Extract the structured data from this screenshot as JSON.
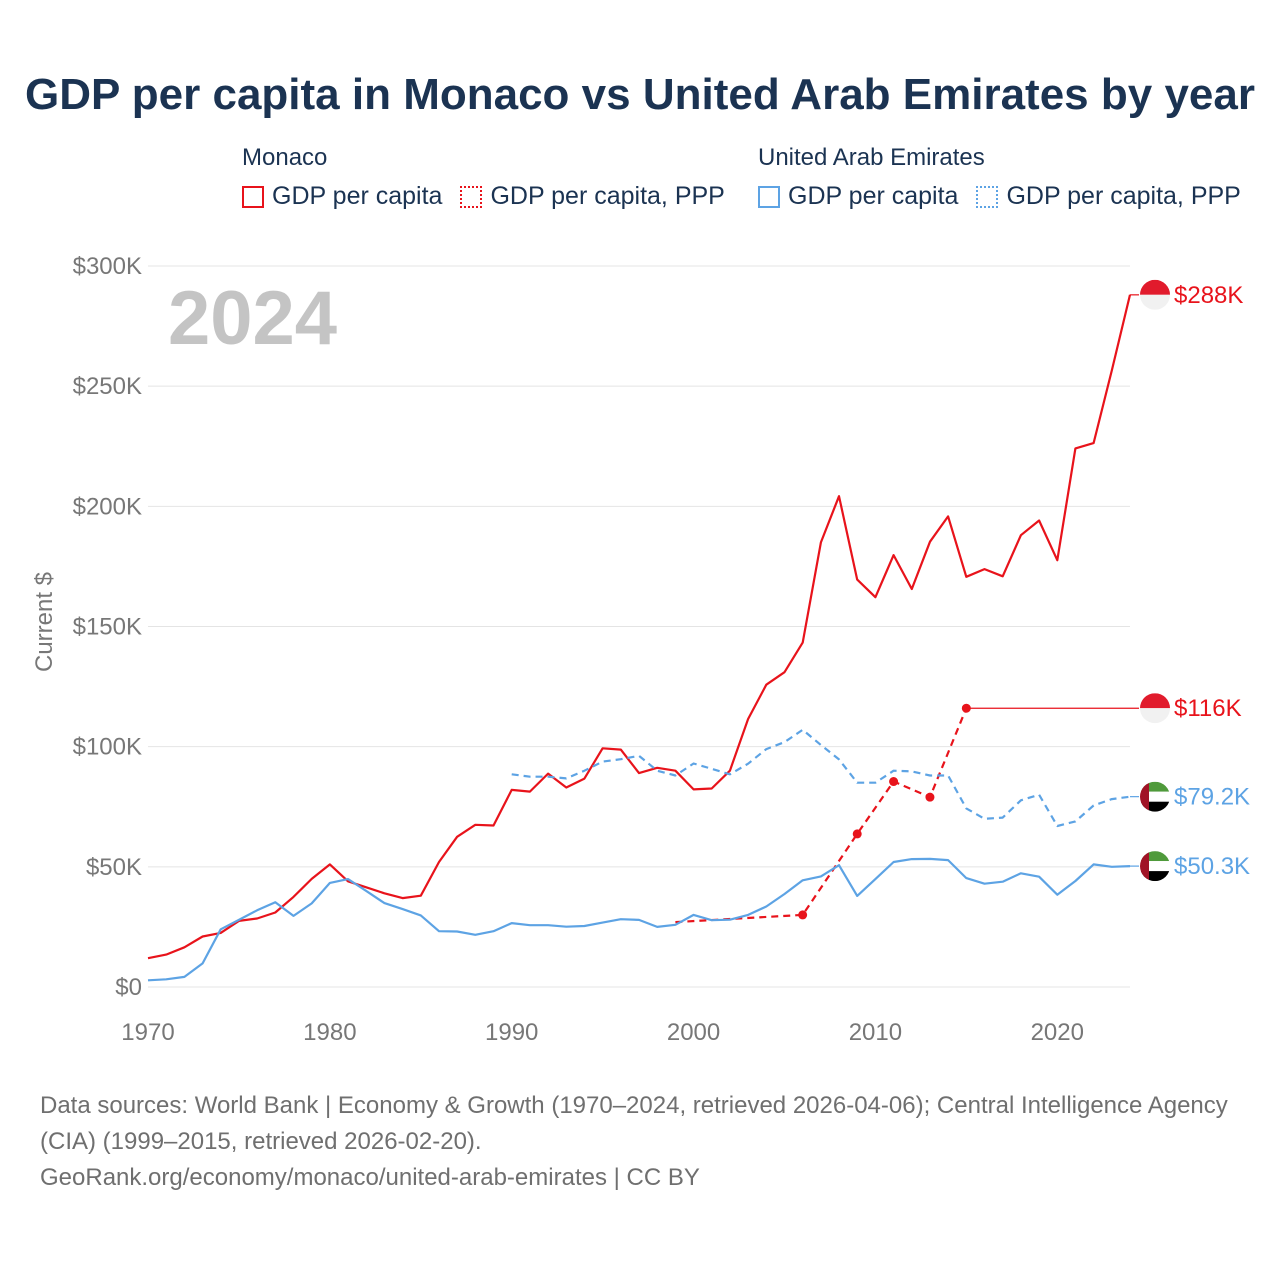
{
  "title": "GDP per capita in Monaco vs United Arab Emirates by year",
  "year_badge": "2024",
  "legend": [
    {
      "country": "Monaco",
      "color": "#e8131b",
      "items": [
        {
          "label": "GDP per capita",
          "style": "solid"
        },
        {
          "label": "GDP per capita, PPP",
          "style": "dotted"
        }
      ]
    },
    {
      "country": "United Arab Emirates",
      "color": "#5da3e4",
      "items": [
        {
          "label": "GDP per capita",
          "style": "solid"
        },
        {
          "label": "GDP per capita, PPP",
          "style": "dotted"
        }
      ]
    }
  ],
  "footer": {
    "sources": "Data sources: World Bank | Economy & Growth (1970–2024, retrieved 2026-04-06); Central Intelligence Agency (CIA) (1999–2015, retrieved 2026-02-20).",
    "credit": "GeoRank.org/economy/monaco/united-arab-emirates | CC BY"
  },
  "chart_data": {
    "type": "line",
    "title": "GDP per capita in Monaco vs United Arab Emirates by year",
    "ylabel": "Current $",
    "xlabel": "",
    "xlim": [
      1970,
      2024
    ],
    "ylim": [
      0,
      300000
    ],
    "x_ticks": [
      1970,
      1980,
      1990,
      2000,
      2010,
      2020
    ],
    "y_ticks": [
      {
        "value": 0,
        "label": "$0"
      },
      {
        "value": 50000,
        "label": "$50K"
      },
      {
        "value": 100000,
        "label": "$100K"
      },
      {
        "value": 150000,
        "label": "$150K"
      },
      {
        "value": 200000,
        "label": "$200K"
      },
      {
        "value": 250000,
        "label": "$250K"
      },
      {
        "value": 300000,
        "label": "$300K"
      }
    ],
    "grid": true,
    "series": [
      {
        "name": "Monaco GDP per capita",
        "country": "Monaco",
        "color": "#e8131b",
        "style": "solid",
        "end_label": "$288K",
        "flag": "monaco",
        "x": [
          1970,
          1971,
          1972,
          1973,
          1974,
          1975,
          1976,
          1977,
          1978,
          1979,
          1980,
          1981,
          1982,
          1983,
          1984,
          1985,
          1986,
          1987,
          1988,
          1989,
          1990,
          1991,
          1992,
          1993,
          1994,
          1995,
          1996,
          1997,
          1998,
          1999,
          2000,
          2001,
          2002,
          2003,
          2004,
          2005,
          2006,
          2007,
          2008,
          2009,
          2010,
          2011,
          2012,
          2013,
          2014,
          2015,
          2016,
          2017,
          2018,
          2019,
          2020,
          2021,
          2022,
          2023,
          2024
        ],
        "values": [
          12000,
          13500,
          16500,
          21000,
          22500,
          27500,
          28500,
          31000,
          37500,
          45000,
          51000,
          44000,
          41500,
          39000,
          37000,
          38000,
          52000,
          62500,
          67500,
          67200,
          82000,
          81300,
          88800,
          83000,
          86700,
          99300,
          98800,
          89000,
          91200,
          90000,
          82200,
          82600,
          90000,
          111500,
          125800,
          131000,
          143300,
          185000,
          204200,
          169500,
          162200,
          179700,
          165600,
          185300,
          195800,
          170700,
          173900,
          170900,
          188000,
          194100,
          177600,
          224100,
          226300,
          256500,
          288000
        ]
      },
      {
        "name": "Monaco GDP per capita, PPP",
        "country": "Monaco",
        "color": "#e8131b",
        "style": "dashed",
        "end_label": "$116K",
        "flag": "monaco",
        "x": [
          1999,
          2006,
          2009,
          2011,
          2013,
          2015
        ],
        "values": [
          27000,
          30000,
          63700,
          85500,
          79000,
          116000
        ]
      },
      {
        "name": "United Arab Emirates GDP per capita",
        "country": "United Arab Emirates",
        "color": "#5da3e4",
        "style": "solid",
        "end_label": "$50.3K",
        "flag": "uae",
        "x": [
          1970,
          1971,
          1972,
          1973,
          1974,
          1975,
          1976,
          1977,
          1978,
          1979,
          1980,
          1981,
          1982,
          1983,
          1984,
          1985,
          1986,
          1987,
          1988,
          1989,
          1990,
          1991,
          1992,
          1993,
          1994,
          1995,
          1996,
          1997,
          1998,
          1999,
          2000,
          2001,
          2002,
          2003,
          2004,
          2005,
          2006,
          2007,
          2008,
          2009,
          2010,
          2011,
          2012,
          2013,
          2014,
          2015,
          2016,
          2017,
          2018,
          2019,
          2020,
          2021,
          2022,
          2023,
          2024
        ],
        "values": [
          2800,
          3200,
          4200,
          9800,
          24000,
          27900,
          31900,
          35300,
          29600,
          34800,
          43300,
          44900,
          40000,
          34900,
          32400,
          29800,
          23200,
          23100,
          21700,
          23200,
          26600,
          25700,
          25700,
          25100,
          25400,
          26800,
          28200,
          27900,
          25000,
          25900,
          30000,
          27800,
          28000,
          30000,
          33500,
          38700,
          44400,
          46000,
          50700,
          37900,
          44900,
          52000,
          53200,
          53300,
          52800,
          45300,
          43000,
          43800,
          47300,
          45900,
          38400,
          44100,
          51000,
          50000,
          50300
        ]
      },
      {
        "name": "United Arab Emirates GDP per capita, PPP",
        "country": "United Arab Emirates",
        "color": "#5da3e4",
        "style": "dashed",
        "end_label": "$79.2K",
        "flag": "uae",
        "x": [
          1990,
          1991,
          1992,
          1993,
          1994,
          1995,
          1996,
          1997,
          1998,
          1999,
          2000,
          2001,
          2002,
          2003,
          2004,
          2005,
          2006,
          2007,
          2008,
          2009,
          2010,
          2011,
          2012,
          2013,
          2014,
          2015,
          2016,
          2017,
          2018,
          2019,
          2020,
          2021,
          2022,
          2023,
          2024
        ],
        "values": [
          88500,
          87500,
          87500,
          86800,
          90000,
          93800,
          94800,
          96200,
          90000,
          88000,
          93000,
          90800,
          88500,
          92900,
          99000,
          101900,
          107000,
          100700,
          94700,
          85000,
          85000,
          90000,
          89700,
          88000,
          88000,
          74300,
          70000,
          70500,
          77700,
          80000,
          67000,
          68900,
          75500,
          78200,
          79200
        ]
      }
    ]
  }
}
